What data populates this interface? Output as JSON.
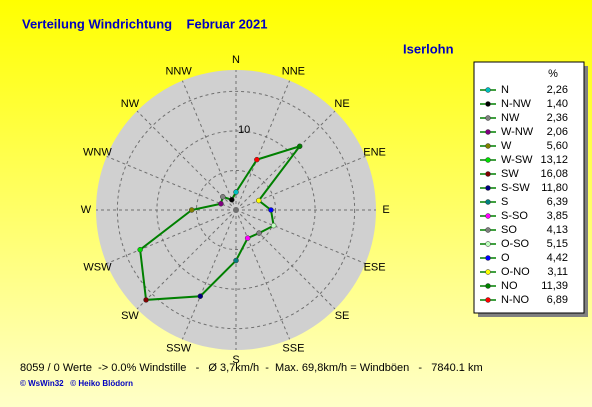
{
  "chart_data": {
    "type": "radar",
    "title": "Verteilung Windrichtung    Februar 2021",
    "subtitle": "Iserlohn",
    "value_header": "%",
    "axis_labels": [
      "N",
      "NNE",
      "NE",
      "ENE",
      "E",
      "ESE",
      "SE",
      "SSE",
      "S",
      "SSW",
      "SW",
      "WSW",
      "W",
      "WNW",
      "NW",
      "NNW"
    ],
    "rlim": [
      0,
      17.7
    ],
    "rticks": [
      5,
      10,
      15
    ],
    "labeled_tick_index": 1,
    "line_color": "#008000",
    "series": {
      "names": [
        "N",
        "N-NW",
        "NW",
        "W-NW",
        "W",
        "W-SW",
        "SW",
        "S-SW",
        "S",
        "S-SO",
        "SO",
        "O-SO",
        "O",
        "O-NO",
        "NO",
        "N-NO"
      ],
      "values": [
        2.26,
        1.4,
        2.36,
        2.06,
        5.6,
        13.12,
        16.08,
        11.8,
        6.39,
        3.85,
        4.13,
        5.15,
        4.42,
        3.11,
        11.39,
        6.89
      ],
      "value_labels": [
        "2,26",
        "1,40",
        "2,36",
        "2,06",
        "5,60",
        "13,12",
        "16,08",
        "11,80",
        "6,39",
        "3,85",
        "4,13",
        "5,15",
        "4,42",
        "3,11",
        "11,39",
        "6,89"
      ],
      "colors": [
        "#00c0c0",
        "#000000",
        "#808080",
        "#800080",
        "#808000",
        "#00e000",
        "#800000",
        "#000080",
        "#008080",
        "#ff00ff",
        "#808080",
        "#c0ffc0",
        "#0000ff",
        "#ffff00",
        "#008000",
        "#ff0000"
      ]
    },
    "footer_stats": "8059 / 0 Werte  -> 0.0% Windstille   -   Ø 3,7km/h  -  Max. 69,8km/h = Windböen   -   7840.1 km",
    "credits": "© WsWin32   © Heiko Blödorn"
  }
}
